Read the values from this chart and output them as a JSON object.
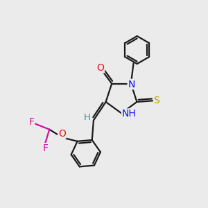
{
  "background_color": "#ebebeb",
  "line_color": "#1a1a1a",
  "bond_width": 1.6,
  "atom_colors": {
    "N": "#1010ee",
    "O": "#ee1010",
    "S": "#b8a000",
    "F": "#d010a0",
    "H": "#3a9090",
    "C": "#1a1a1a"
  },
  "figsize": [
    3.0,
    3.0
  ],
  "dpi": 100
}
